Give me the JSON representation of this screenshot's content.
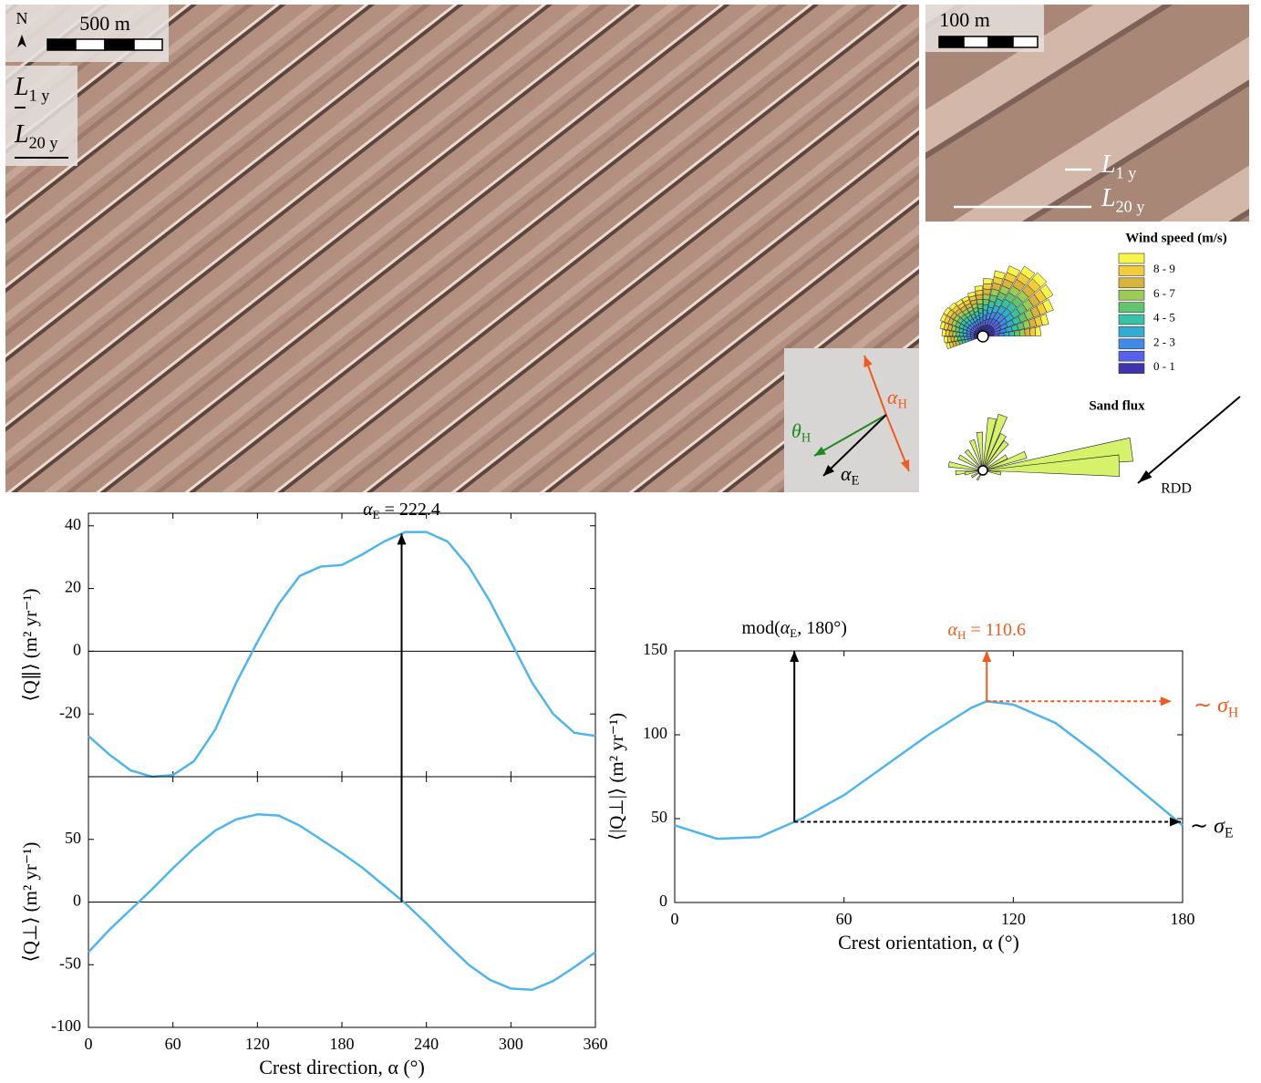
{
  "map_panel": {
    "north": "N",
    "scale": "500 m",
    "L1": {
      "symbol": "L",
      "sub": "1 y"
    },
    "L20": {
      "symbol": "L",
      "sub": "20 y"
    },
    "inset": {
      "alpha_H": {
        "symbol": "α",
        "sub": "H"
      },
      "theta_H": {
        "symbol": "θ",
        "sub": "H"
      },
      "alpha_E": {
        "symbol": "α",
        "sub": "E"
      }
    }
  },
  "zoom_panel": {
    "scale": "100 m",
    "L1": {
      "symbol": "L",
      "sub": "1 y"
    },
    "L20": {
      "symbol": "L",
      "sub": "20 y"
    }
  },
  "wind_rose": {
    "title": "Wind speed (m/s)",
    "colors": [
      "#f7f54a",
      "#f2cc3c",
      "#d8b43e",
      "#9ccc55",
      "#62c46f",
      "#39c1a6",
      "#33acd4",
      "#3f8ae6",
      "#5663e8",
      "#3f33b0"
    ],
    "labels": [
      "8 - 9",
      "6 - 7",
      "4 - 5",
      "2 - 3",
      "0 - 1"
    ]
  },
  "flux_rose": {
    "title": "Sand flux",
    "color": "#d6f26b",
    "arrow_label": "RDD"
  },
  "chart_data": [
    {
      "type": "line",
      "ylabel": "⟨Q∥⟩ (m² yr⁻¹)",
      "xlim": [
        0,
        360
      ],
      "xticks": [
        0,
        60,
        120,
        180,
        240,
        300,
        360
      ],
      "ylim": [
        -40,
        44
      ],
      "yticks": [
        -20,
        0,
        20,
        40
      ],
      "zero_line": true,
      "x": [
        0,
        15,
        30,
        45,
        60,
        75,
        90,
        105,
        120,
        135,
        150,
        165,
        180,
        195,
        210,
        225,
        240,
        255,
        270,
        285,
        300,
        315,
        330,
        345,
        360
      ],
      "series": [
        {
          "color": "#4db6ec",
          "values": [
            -27,
            -33,
            -38,
            -40,
            -39.5,
            -35,
            -25,
            -10,
            3,
            15,
            24,
            27,
            27.5,
            31,
            35,
            38,
            38,
            35,
            27,
            16,
            3,
            -10,
            -20,
            -26,
            -27
          ]
        }
      ],
      "annotation": {
        "symbol": "α",
        "sub": "E",
        "text": " = 222.4",
        "x": 222.4
      }
    },
    {
      "type": "line",
      "ylabel": "⟨Q⊥⟩ (m² yr⁻¹)",
      "xlabel": "Crest direction, α (°)",
      "xlim": [
        0,
        360
      ],
      "xticks": [
        0,
        60,
        120,
        180,
        240,
        300,
        360
      ],
      "ylim": [
        -100,
        100
      ],
      "yticks": [
        -100,
        -50,
        0,
        50
      ],
      "zero_line": true,
      "x": [
        0,
        15,
        30,
        45,
        60,
        75,
        90,
        105,
        120,
        135,
        150,
        165,
        180,
        195,
        210,
        225,
        240,
        255,
        270,
        285,
        300,
        315,
        330,
        345,
        360
      ],
      "series": [
        {
          "color": "#4db6ec",
          "values": [
            -40,
            -22,
            -6,
            10,
            27,
            43,
            57,
            66,
            70,
            69,
            61,
            50,
            39,
            27,
            13,
            -1,
            -17,
            -34,
            -50,
            -62,
            -69,
            -70,
            -63,
            -52,
            -40
          ]
        }
      ]
    },
    {
      "type": "line",
      "ylabel": "⟨|Q⊥|⟩ (m² yr⁻¹)",
      "xlabel": "Crest orientation, α (°)",
      "xlim": [
        0,
        180
      ],
      "xticks": [
        0,
        60,
        120,
        180
      ],
      "ylim": [
        0,
        150
      ],
      "yticks": [
        0,
        50,
        100,
        150
      ],
      "zero_line": false,
      "x": [
        0,
        15,
        30,
        45,
        60,
        75,
        90,
        105,
        110.6,
        120,
        135,
        150,
        165,
        180
      ],
      "series": [
        {
          "color": "#4db6ec",
          "values": [
            46,
            38,
            39,
            50,
            64,
            82,
            100,
            116,
            120,
            118,
            107,
            88,
            67,
            46
          ]
        }
      ],
      "mod_label": {
        "pre": "mod(",
        "symbol": "α",
        "sub": "E",
        "text": ", 180°)"
      },
      "peak": {
        "symbol": "α",
        "sub": "H",
        "text": " = 110.6",
        "x": 110.6,
        "color": "#f05a1e"
      },
      "sigma_H": {
        "pre": "∼ ",
        "symbol": "σ",
        "sub": "H"
      },
      "sigma_E": {
        "pre": "∼ ",
        "symbol": "σ",
        "sub": "E"
      }
    }
  ]
}
